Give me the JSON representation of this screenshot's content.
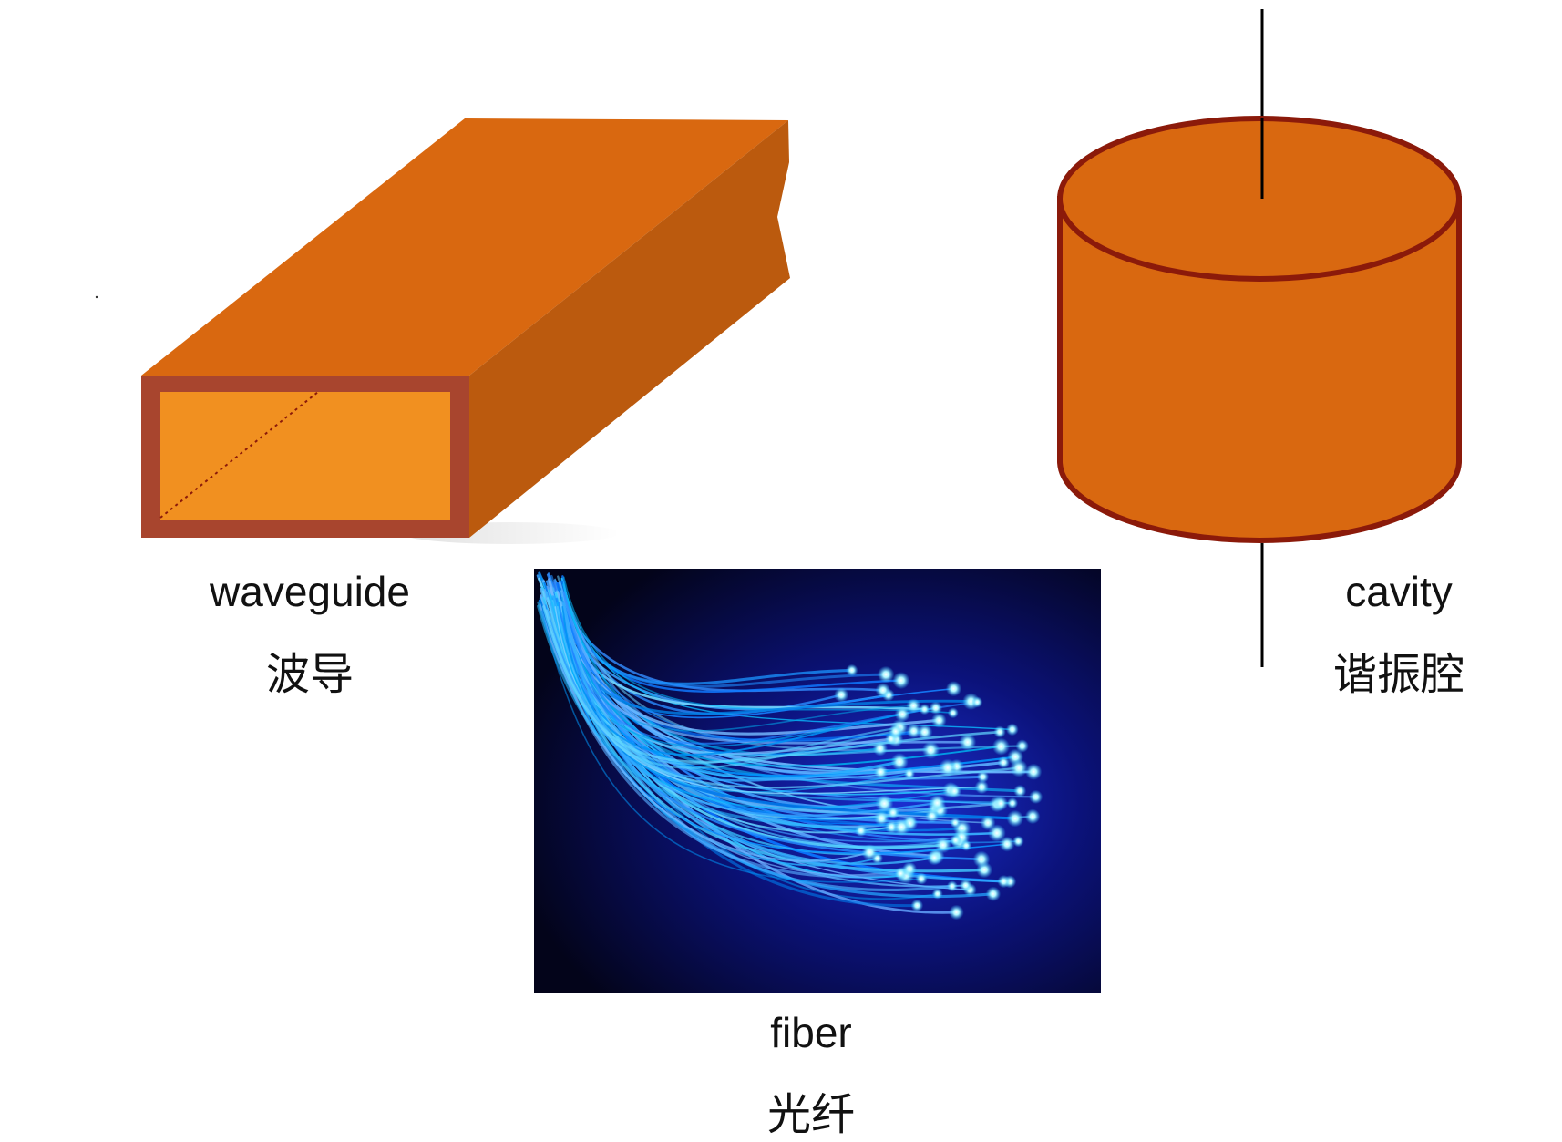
{
  "items": {
    "waveguide": {
      "label_en": "waveguide",
      "label_zh": "波导"
    },
    "cavity": {
      "label_en": "cavity",
      "label_zh": "谐振腔"
    },
    "fiber": {
      "label_en": "fiber",
      "label_zh": "光纤"
    }
  },
  "colors": {
    "copper_top": "#d96810",
    "copper_side": "#bb5a0e",
    "copper_front_rim": "#a8452e",
    "waveguide_inner": "#f19020",
    "cavity_body": "#d96810",
    "cavity_outline": "#8b1a0a",
    "fiber_glow": "#4fe3ff",
    "fiber_background": "#04051a"
  }
}
